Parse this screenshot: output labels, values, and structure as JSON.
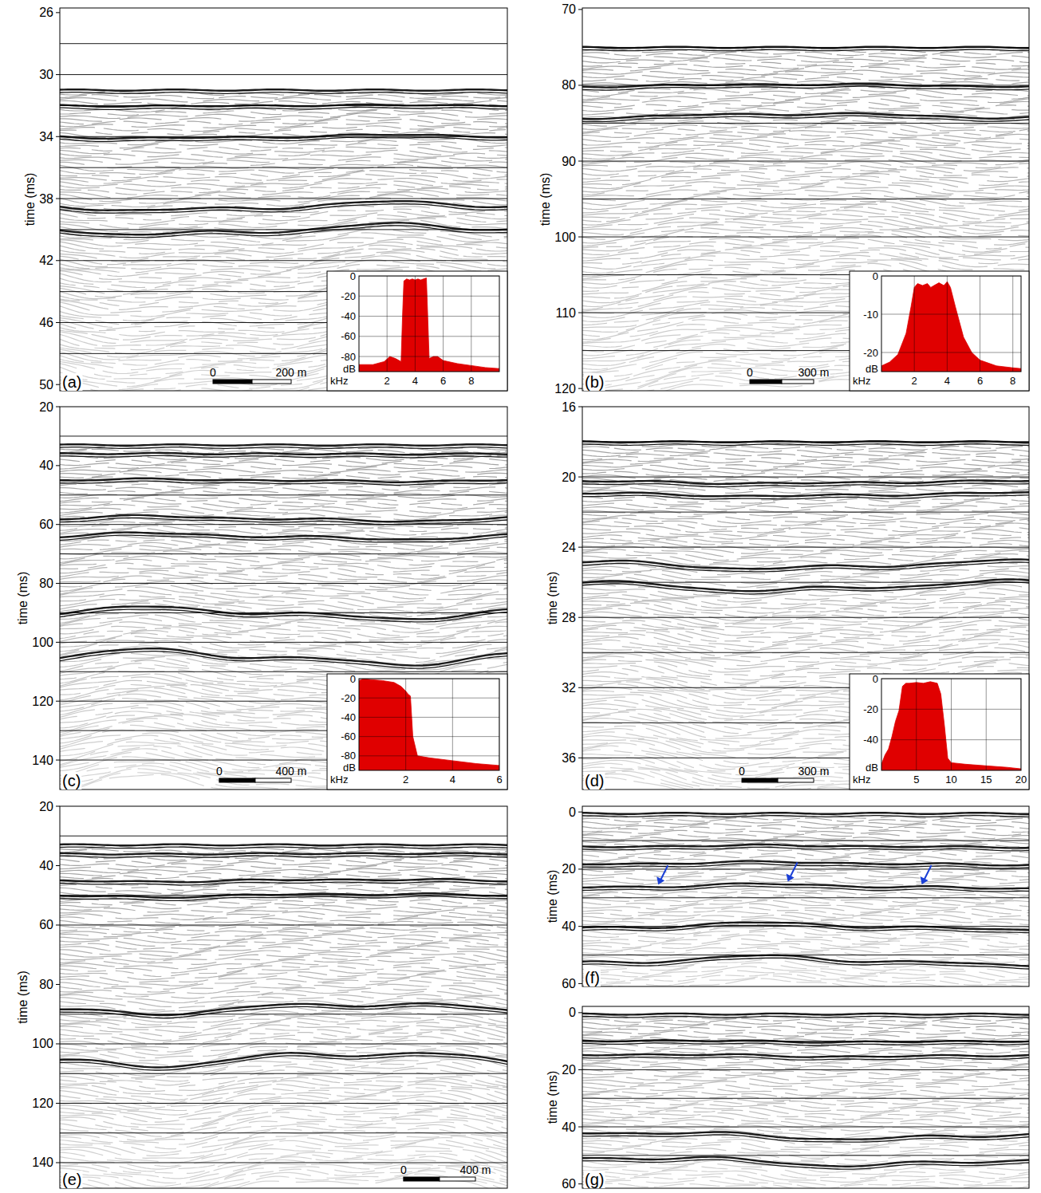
{
  "chart_data": [
    {
      "type": "seismic",
      "label": "(a)",
      "y_label": "time (ms)",
      "ylim": [
        25.7,
        50.4
      ],
      "yticks": [
        26,
        30,
        34,
        38,
        42,
        46,
        50
      ],
      "ygrid": [
        28,
        30,
        32,
        34,
        36,
        38,
        40,
        42,
        44,
        46,
        48
      ],
      "xlim": [
        0,
        1145
      ],
      "scale_bar": {
        "value": 200,
        "labels": [
          "0",
          "200 m"
        ]
      },
      "reflectors_ms": [
        31,
        32,
        34,
        38.5,
        40
      ],
      "inset": {
        "type": "area",
        "color": "#e00000",
        "x_label": "kHz",
        "y_label": "dB",
        "grid": true,
        "xlim": [
          0,
          10
        ],
        "ylim": [
          -95,
          0
        ],
        "xticks": [
          2,
          4,
          6,
          8
        ],
        "yticks": [
          -80,
          -60,
          -40,
          -20,
          0
        ],
        "x": [
          0,
          1,
          1.8,
          2.2,
          2.6,
          3.0,
          3.1,
          3.2,
          3.4,
          3.6,
          3.8,
          4.0,
          4.2,
          4.4,
          4.6,
          4.8,
          4.9,
          5.0,
          5.3,
          5.6,
          6.0,
          7,
          8,
          9,
          10
        ],
        "values": [
          -88,
          -88,
          -85,
          -80,
          -82,
          -85,
          -40,
          -5,
          -3,
          -4,
          -3,
          -4,
          -3,
          -4,
          -3,
          -2,
          -40,
          -82,
          -80,
          -80,
          -84,
          -87,
          -89,
          -91,
          -92
        ]
      }
    },
    {
      "type": "seismic",
      "label": "(b)",
      "y_label": "time (ms)",
      "ylim": [
        69.8,
        120.3
      ],
      "yticks": [
        70,
        80,
        90,
        100,
        110,
        120
      ],
      "ygrid": [
        75,
        80,
        85,
        90,
        95,
        100,
        105,
        110,
        115
      ],
      "xlim": [
        0,
        2100
      ],
      "scale_bar": {
        "value": 300,
        "labels": [
          "0",
          "300 m"
        ]
      },
      "reflectors_ms": [
        75,
        80,
        84
      ],
      "inset": {
        "type": "area",
        "color": "#e00000",
        "x_label": "kHz",
        "y_label": "dB",
        "grid": true,
        "xlim": [
          0,
          8.5
        ],
        "ylim": [
          -25,
          0
        ],
        "xticks": [
          2,
          4,
          6,
          8
        ],
        "yticks": [
          -20,
          -10,
          0
        ],
        "x": [
          0,
          0.5,
          1,
          1.5,
          1.8,
          2.0,
          2.2,
          2.5,
          2.8,
          3.0,
          3.2,
          3.5,
          3.8,
          4.0,
          4.2,
          4.5,
          5,
          5.5,
          6,
          7,
          8,
          8.5
        ],
        "values": [
          -23.5,
          -22.5,
          -20.5,
          -15,
          -8,
          -3,
          -2,
          -2.5,
          -2,
          -3,
          -2.5,
          -1.8,
          -2.5,
          -1.5,
          -3,
          -8,
          -16,
          -20,
          -22,
          -23.5,
          -24,
          -24.2
        ]
      }
    },
    {
      "type": "seismic",
      "label": "(c)",
      "y_label": "time (ms)",
      "ylim": [
        20,
        150
      ],
      "yticks": [
        20,
        40,
        60,
        80,
        100,
        120,
        140
      ],
      "ygrid": [
        30,
        50,
        60,
        70,
        80,
        90,
        100,
        110,
        120,
        130,
        140
      ],
      "xlim": [
        0,
        2490
      ],
      "scale_bar": {
        "value": 400,
        "labels": [
          "0",
          "400 m"
        ]
      },
      "reflectors_ms": [
        33,
        36,
        45,
        58,
        64,
        90,
        105
      ],
      "inset": {
        "type": "area",
        "color": "#e00000",
        "x_label": "kHz",
        "y_label": "dB",
        "grid": true,
        "xlim": [
          0,
          6
        ],
        "ylim": [
          -95,
          0
        ],
        "xticks": [
          2,
          4,
          6
        ],
        "yticks": [
          -80,
          -60,
          -40,
          -20,
          0
        ],
        "x": [
          0,
          0.2,
          0.5,
          1,
          1.5,
          1.8,
          2.0,
          2.1,
          2.2,
          2.3,
          2.5,
          3,
          4,
          5,
          6
        ],
        "values": [
          -2,
          0,
          -1,
          -2,
          -4,
          -8,
          -13,
          -16,
          -18,
          -60,
          -80,
          -82,
          -85,
          -88,
          -90
        ]
      }
    },
    {
      "type": "seismic",
      "label": "(d)",
      "y_label": "time (ms)",
      "ylim": [
        16,
        37.8
      ],
      "yticks": [
        16,
        20,
        24,
        28,
        32,
        36
      ],
      "ygrid": [
        18,
        20,
        22,
        24,
        26,
        28,
        30,
        32,
        34,
        36
      ],
      "xlim": [
        0,
        1867
      ],
      "scale_bar": {
        "value": 300,
        "labels": [
          "0",
          "300 m"
        ]
      },
      "reflectors_ms": [
        18,
        20.3,
        21,
        25,
        26.2
      ],
      "inset": {
        "type": "area",
        "color": "#e00000",
        "x_label": "kHz",
        "y_label": "dB",
        "grid": true,
        "xlim": [
          0,
          20
        ],
        "ylim": [
          -60,
          0
        ],
        "xticks": [
          5,
          10,
          15,
          20
        ],
        "yticks": [
          -40,
          -20,
          0
        ],
        "x": [
          0,
          0.5,
          1,
          1.5,
          2,
          2.5,
          3,
          3.5,
          4,
          5,
          6,
          7,
          8,
          8.5,
          9,
          9.5,
          10,
          12,
          15,
          18,
          20
        ],
        "values": [
          -56,
          -50,
          -46,
          -38,
          -28,
          -21,
          -5,
          -3,
          -3,
          -2.5,
          -3,
          -2,
          -3,
          -10,
          -30,
          -52,
          -55,
          -56,
          -57,
          -58,
          -59
        ]
      }
    },
    {
      "type": "seismic",
      "label": "(e)",
      "y_label": "time (ms)",
      "ylim": [
        20,
        148.6
      ],
      "yticks": [
        20,
        40,
        60,
        80,
        100,
        120,
        140
      ],
      "ygrid": [
        30,
        50,
        60,
        90,
        100,
        110,
        120,
        130,
        140
      ],
      "xlim": [
        0,
        2490
      ],
      "scale_bar": {
        "value": 400,
        "labels": [
          "0",
          "400 m"
        ]
      },
      "reflectors_ms": [
        33,
        36,
        45,
        50,
        88,
        105
      ]
    },
    {
      "type": "seismic",
      "label": "(f)",
      "y_label": "time (ms)",
      "ylim": [
        -2,
        61
      ],
      "yticks": [
        0,
        20,
        40,
        60
      ],
      "ygrid": [
        10,
        20,
        30,
        40,
        50
      ],
      "reflectors_ms": [
        0.5,
        12,
        18,
        26,
        40,
        52
      ]
    },
    {
      "type": "seismic",
      "label": "(g)",
      "y_label": "time (ms)",
      "ylim": [
        -2.2,
        61.5
      ],
      "yticks": [
        0,
        20,
        40,
        60
      ],
      "ygrid": [
        10,
        20,
        30,
        40,
        50
      ],
      "reflectors_ms": [
        0.5,
        10,
        15,
        43,
        52
      ]
    }
  ]
}
